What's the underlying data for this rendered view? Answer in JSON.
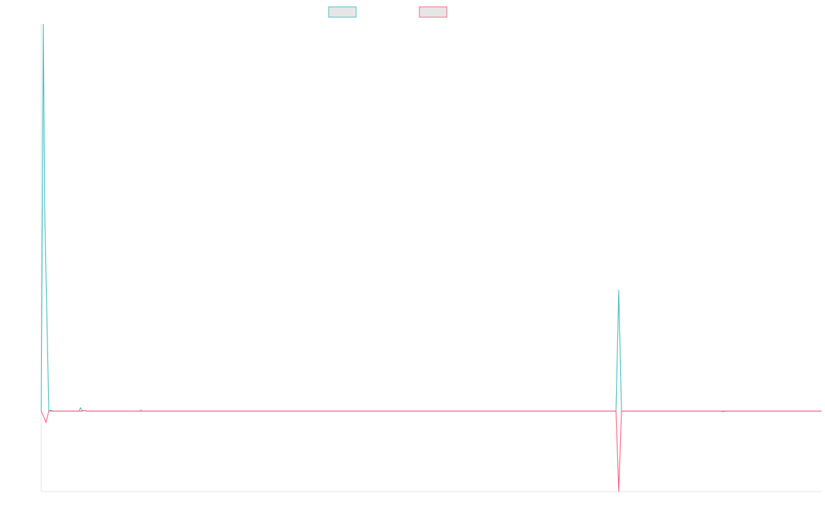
{
  "chart_data": {
    "type": "line",
    "xlim": [
      0,
      1135
    ],
    "ylim": [
      -100,
      480
    ],
    "grid": false,
    "legend": "top",
    "series": [
      {
        "color": "#4bc0c0",
        "x": [
          0,
          3,
          5,
          11,
          14,
          17,
          55,
          57,
          60,
          63,
          66,
          143,
          145,
          147,
          836,
          840,
          844,
          989,
          992,
          995,
          1135
        ],
        "values": [
          0,
          480,
          250,
          0,
          1,
          0,
          0,
          4,
          0,
          1,
          0,
          0,
          1,
          0,
          0,
          150,
          0,
          0,
          -1,
          0,
          0
        ]
      },
      {
        "color": "#ff6384",
        "x": [
          0,
          7,
          11,
          14,
          17,
          60,
          63,
          66,
          836,
          840,
          844,
          1135
        ],
        "values": [
          0,
          -14,
          0,
          0,
          0,
          0,
          1,
          0,
          0,
          -100,
          0,
          0
        ]
      }
    ]
  }
}
